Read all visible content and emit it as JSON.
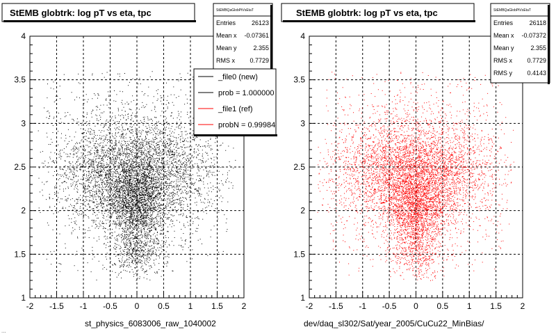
{
  "footer_text": "...",
  "chart_data": [
    {
      "type": "scatter",
      "title": "StEMB globtrk: log pT vs eta, tpc",
      "xlabel": "st_physics_6083006_raw_1040002",
      "ylabel": "",
      "xlim": [
        -2,
        2
      ],
      "ylim": [
        1,
        4
      ],
      "xticks": [
        "-2",
        "-1.5",
        "-1",
        "-0.5",
        "0",
        "0.5",
        "1",
        "1.5",
        "2"
      ],
      "yticks": [
        "1",
        "1.5",
        "2",
        "2.5",
        "3",
        "3.5",
        "4"
      ],
      "grid": true,
      "point_color": "#000000",
      "stats": {
        "header": "StEMBQaGlobPtVsEtaT",
        "rows": [
          {
            "label": "Entries",
            "value": "26123"
          },
          {
            "label": "Mean x",
            "value": "-0.07361"
          },
          {
            "label": "Mean y",
            "value": "2.355"
          },
          {
            "label": "RMS x",
            "value": "0.7729"
          }
        ]
      },
      "legend": {
        "placement": "top-right",
        "entries": [
          {
            "label": "_file0 (new)",
            "color": "#000000"
          },
          {
            "label": "prob = 1.000000",
            "color": "#000000"
          },
          {
            "label": "_file1 (ref)",
            "color": "#ff0000"
          },
          {
            "label": "probN = 0.99984",
            "color": "#ff0000"
          }
        ]
      },
      "distribution": {
        "entries": 26123,
        "mean_x": -0.07361,
        "mean_y": 2.355,
        "rms_x": 0.7729
      }
    },
    {
      "type": "scatter",
      "title": "StEMB globtrk: log pT vs eta, tpc",
      "xlabel": "dev/daq_sl302/Sat/year_2005/CuCu22_MinBias/",
      "ylabel": "",
      "xlim": [
        -2,
        2
      ],
      "ylim": [
        1,
        4
      ],
      "xticks": [
        "-2",
        "-1.5",
        "-1",
        "-0.5",
        "0",
        "0.5",
        "1",
        "1.5",
        "2"
      ],
      "yticks": [
        "1",
        "1.5",
        "2",
        "2.5",
        "3",
        "3.5",
        "4"
      ],
      "grid": true,
      "point_color": "#ff0000",
      "stats": {
        "header": "StEMBQaGlobPtVsEtaT",
        "rows": [
          {
            "label": "Entries",
            "value": "26118"
          },
          {
            "label": "Mean x",
            "value": "-0.07372"
          },
          {
            "label": "Mean y",
            "value": "2.355"
          },
          {
            "label": "RMS x",
            "value": "0.7729"
          },
          {
            "label": "RMS y",
            "value": "0.4143"
          }
        ]
      },
      "distribution": {
        "entries": 26118,
        "mean_x": -0.07372,
        "mean_y": 2.355,
        "rms_x": 0.7729,
        "rms_y": 0.4143
      }
    }
  ]
}
